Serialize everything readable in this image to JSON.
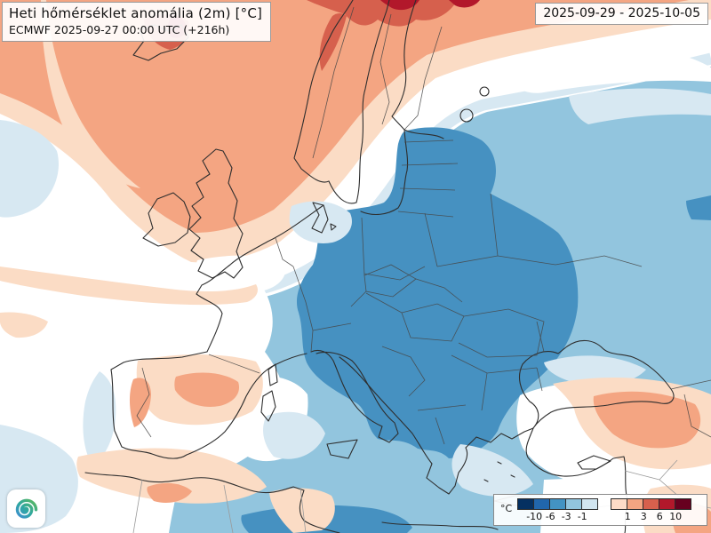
{
  "header": {
    "title": "Heti hőmérséklet anomália (2m) [°C]",
    "subtitle": "ECMWF 2025-09-27 00:00 UTC (+216h)"
  },
  "daterange": {
    "text": "2025-09-29 - 2025-10-05"
  },
  "legend": {
    "unit": "°C",
    "cold": {
      "colors": [
        "#053061",
        "#2166ac",
        "#4393c3",
        "#92c5de",
        "#d1e5f0"
      ],
      "labels": [
        "-10",
        "-6",
        "-3",
        "-1"
      ]
    },
    "warm": {
      "colors": [
        "#fddbc7",
        "#f4a582",
        "#d6604d",
        "#b2182b",
        "#67001f"
      ],
      "labels": [
        "1",
        "3",
        "6",
        "10"
      ]
    }
  },
  "map": {
    "palette": {
      "base": "#ffffff",
      "cool_1": "#d7e8f2",
      "cool_2": "#92c5de",
      "cool_3": "#4691c1",
      "warm_1": "#fbdcc5",
      "warm_2": "#f4a582",
      "warm_3": "#d6604d",
      "warm_4": "#b2182b",
      "coast": "#2e2e2e",
      "border": "#474747",
      "border_light": "#9a9a9a"
    },
    "zones": [
      {
        "name": "northwest-atlantic-scandinavia",
        "anomaly": "+1..+3"
      },
      {
        "name": "north-norway-iceland-cores",
        "anomaly": "+3..+6"
      },
      {
        "name": "central-eastern-europe-cold-core",
        "anomaly": "-6..-3"
      },
      {
        "name": "surrounding-europe-cold",
        "anomaly": "-3..-1"
      },
      {
        "name": "iberia-interior-warm-patches",
        "anomaly": "+1..+3"
      },
      {
        "name": "northwest-africa-warm",
        "anomaly": "0..+3"
      },
      {
        "name": "eastern-turkey-warm",
        "anomaly": "+1..+3"
      }
    ]
  },
  "logo": {
    "name": "spiral-weather-logo",
    "colors": [
      "#2fa8a0",
      "#5cb85c",
      "#3f8fd2"
    ]
  }
}
